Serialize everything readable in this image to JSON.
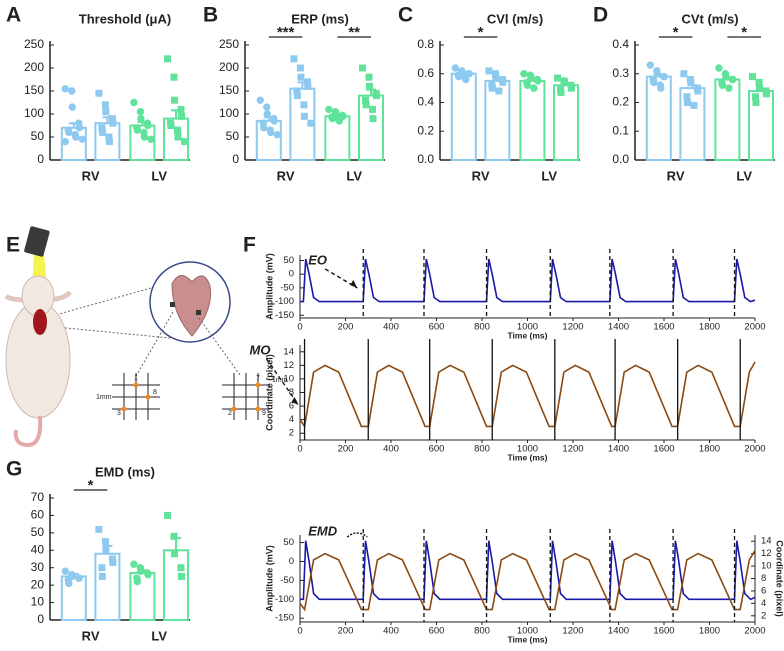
{
  "panel_labels": [
    "A",
    "B",
    "C",
    "D",
    "E",
    "F",
    "G"
  ],
  "illustration": {
    "labels": [
      "1",
      "3",
      "8",
      "1mm",
      "7",
      "2",
      "9",
      "1mm"
    ]
  },
  "chart_data": [
    {
      "type": "bar",
      "title": "Threshold (μA)",
      "categories": [
        "RV",
        "LV"
      ],
      "colors": [
        "#8ec9ef",
        "#5fe39a"
      ],
      "ylim": [
        0,
        250
      ],
      "yticks": [
        0,
        50,
        100,
        150,
        200,
        250
      ],
      "series": [
        {
          "marker": "circle",
          "values": [
            70,
            75
          ],
          "errors": [
            10,
            8
          ],
          "points": [
            [
              155,
              150,
              115,
              80,
              70,
              65,
              60,
              55,
              50,
              45,
              40
            ],
            [
              125,
              105,
              90,
              80,
              75,
              70,
              65,
              60,
              50,
              45
            ]
          ]
        },
        {
          "marker": "square",
          "values": [
            80,
            90
          ],
          "errors": [
            13,
            18
          ],
          "points": [
            [
              145,
              120,
              105,
              90,
              80,
              70,
              60,
              50,
              40
            ],
            [
              220,
              180,
              130,
              110,
              95,
              80,
              75,
              65,
              50,
              40
            ]
          ]
        }
      ],
      "annotations": []
    },
    {
      "type": "bar",
      "title": "ERP (ms)",
      "categories": [
        "RV",
        "LV"
      ],
      "colors": [
        "#8ec9ef",
        "#5fe39a"
      ],
      "ylim": [
        0,
        250
      ],
      "yticks": [
        0,
        50,
        100,
        150,
        200,
        250
      ],
      "series": [
        {
          "marker": "circle",
          "values": [
            85,
            95
          ],
          "errors": [
            8,
            3
          ],
          "points": [
            [
              130,
              115,
              100,
              90,
              85,
              80,
              70,
              65,
              60,
              55
            ],
            [
              110,
              105,
              100,
              97,
              95,
              93,
              90,
              88,
              85
            ]
          ]
        },
        {
          "marker": "square",
          "values": [
            155,
            140
          ],
          "errors": [
            14,
            13
          ],
          "points": [
            [
              220,
              200,
              180,
              170,
              160,
              150,
              140,
              120,
              95,
              80
            ],
            [
              200,
              180,
              160,
              145,
              140,
              130,
              120,
              110,
              90
            ]
          ]
        }
      ],
      "annotations": [
        {
          "text": "***",
          "category": 0
        },
        {
          "text": "**",
          "category": 1
        }
      ]
    },
    {
      "type": "bar",
      "title": "CVl (m/s)",
      "categories": [
        "RV",
        "LV"
      ],
      "colors": [
        "#8ec9ef",
        "#5fe39a"
      ],
      "ylim": [
        0,
        0.8
      ],
      "yticks": [
        {
          "value": 0,
          "label": "0.0"
        },
        0.2,
        0.4,
        0.6,
        0.8
      ],
      "series": [
        {
          "marker": "circle",
          "values": [
            0.6,
            0.55
          ],
          "errors": [
            0.01,
            0.012
          ],
          "points": [
            [
              0.64,
              0.62,
              0.61,
              0.6,
              0.6,
              0.59,
              0.58,
              0.57,
              0.56
            ],
            [
              0.6,
              0.59,
              0.58,
              0.56,
              0.55,
              0.54,
              0.52,
              0.5
            ]
          ]
        },
        {
          "marker": "square",
          "values": [
            0.55,
            0.52
          ],
          "errors": [
            0.015,
            0.01
          ],
          "points": [
            [
              0.62,
              0.6,
              0.58,
              0.56,
              0.54,
              0.52,
              0.5,
              0.48
            ],
            [
              0.57,
              0.55,
              0.54,
              0.52,
              0.5,
              0.49,
              0.47
            ]
          ]
        }
      ],
      "annotations": [
        {
          "text": "*",
          "category": 0
        }
      ]
    },
    {
      "type": "bar",
      "title": "CVt (m/s)",
      "categories": [
        "RV",
        "LV"
      ],
      "colors": [
        "#8ec9ef",
        "#5fe39a"
      ],
      "ylim": [
        0,
        0.4
      ],
      "yticks": [
        {
          "value": 0,
          "label": "0.0"
        },
        0.1,
        0.2,
        0.3,
        0.4
      ],
      "series": [
        {
          "marker": "circle",
          "values": [
            0.29,
            0.28
          ],
          "errors": [
            0.006,
            0.007
          ],
          "points": [
            [
              0.33,
              0.31,
              0.3,
              0.29,
              0.29,
              0.28,
              0.27,
              0.26,
              0.25
            ],
            [
              0.32,
              0.3,
              0.29,
              0.28,
              0.28,
              0.27,
              0.26,
              0.25
            ]
          ]
        },
        {
          "marker": "square",
          "values": [
            0.25,
            0.24
          ],
          "errors": [
            0.01,
            0.008
          ],
          "points": [
            [
              0.3,
              0.28,
              0.27,
              0.25,
              0.24,
              0.22,
              0.2,
              0.19
            ],
            [
              0.29,
              0.27,
              0.25,
              0.24,
              0.23,
              0.22,
              0.2
            ]
          ]
        }
      ],
      "annotations": [
        {
          "text": "*",
          "category": 0
        },
        {
          "text": "*",
          "category": 1
        }
      ]
    },
    {
      "type": "bar",
      "title": "EMD (ms)",
      "categories": [
        "RV",
        "LV"
      ],
      "colors": [
        "#8ec9ef",
        "#5fe39a"
      ],
      "ylim": [
        0,
        70
      ],
      "yticks": [
        0,
        10,
        20,
        30,
        40,
        50,
        60,
        70
      ],
      "series": [
        {
          "marker": "circle",
          "values": [
            25,
            27
          ],
          "errors": [
            1.5,
            1.5
          ],
          "points": [
            [
              28,
              26,
              25,
              24,
              24,
              23,
              21
            ],
            [
              32,
              30,
              28,
              27,
              26,
              24,
              22
            ]
          ]
        },
        {
          "marker": "square",
          "values": [
            38,
            40
          ],
          "errors": [
            4.5,
            7
          ],
          "points": [
            [
              52,
              45,
              40,
              35,
              33,
              30,
              25
            ],
            [
              60,
              48,
              38,
              30,
              25
            ]
          ]
        }
      ],
      "annotations": [
        {
          "text": "*",
          "category": 0
        }
      ]
    },
    {
      "type": "line",
      "ylabel": "Amplitude (mV)",
      "xlabel": "Time (ms)",
      "annotation": "EO",
      "xlim": [
        0,
        2000
      ],
      "xticks": [
        0,
        200,
        400,
        600,
        800,
        1000,
        1200,
        1400,
        1600,
        1800,
        2000
      ],
      "ylim": [
        -160,
        70
      ],
      "yticks": [
        -150,
        -100,
        -50,
        0,
        50
      ],
      "events": {
        "style": "dashed",
        "values": [
          278,
          545,
          820,
          1100,
          1362,
          1640,
          1910
        ]
      },
      "series": [
        {
          "color": "#1a1aa6",
          "axis": "y",
          "x": [
            0,
            15,
            25,
            40,
            60,
            85,
            278,
            288,
            303,
            323,
            348,
            545,
            555,
            570,
            590,
            615,
            820,
            830,
            845,
            865,
            890,
            1100,
            1110,
            1125,
            1145,
            1170,
            1362,
            1372,
            1387,
            1407,
            1432,
            1640,
            1650,
            1665,
            1685,
            1710,
            1910,
            1920,
            1935,
            1955,
            1980,
            2000
          ],
          "values": [
            -100,
            -100,
            55,
            0,
            -85,
            -100,
            -100,
            55,
            0,
            -85,
            -100,
            -100,
            55,
            0,
            -85,
            -100,
            -100,
            55,
            0,
            -85,
            -100,
            -100,
            55,
            0,
            -85,
            -100,
            -100,
            55,
            0,
            -85,
            -100,
            -100,
            55,
            0,
            -85,
            -100,
            -100,
            55,
            0,
            -85,
            -100,
            -95
          ]
        }
      ]
    },
    {
      "type": "line",
      "ylabel": "Coordinate (pixel)",
      "xlabel": "Time (ms)",
      "annotation": "MO",
      "xlim": [
        0,
        2000
      ],
      "xticks": [
        0,
        200,
        400,
        600,
        800,
        1000,
        1200,
        1400,
        1600,
        1800,
        2000
      ],
      "ylim": [
        1,
        15
      ],
      "yticks": [
        2,
        4,
        6,
        8,
        10,
        12,
        14
      ],
      "events": {
        "style": "solid",
        "values": [
          20,
          300,
          570,
          845,
          1120,
          1385,
          1660,
          1935
        ]
      },
      "series": [
        {
          "color": "#8b4a12",
          "axis": "y",
          "x": [
            0,
            20,
            60,
            110,
            170,
            220,
            270,
            300,
            340,
            390,
            450,
            500,
            550,
            570,
            610,
            660,
            720,
            770,
            820,
            845,
            885,
            935,
            995,
            1045,
            1095,
            1120,
            1160,
            1210,
            1270,
            1320,
            1370,
            1385,
            1425,
            1475,
            1535,
            1585,
            1635,
            1660,
            1700,
            1750,
            1810,
            1860,
            1910,
            1935,
            1975,
            2000
          ],
          "values": [
            4,
            3,
            11,
            12,
            11,
            7,
            3,
            3,
            11,
            12,
            11,
            7,
            3,
            3,
            11,
            12,
            11,
            7,
            3,
            3,
            11,
            12,
            11,
            7,
            3,
            3,
            11,
            12,
            11,
            7,
            3,
            3,
            11,
            12,
            11,
            7,
            3,
            3,
            11,
            12,
            11,
            7,
            3,
            3,
            11,
            12.5
          ]
        }
      ]
    },
    {
      "type": "line",
      "ylabel": "Amplitude (mV)",
      "y2label": "Coordinate (pixel)",
      "xlabel": "Time (ms)",
      "annotation": "EMD",
      "xlim": [
        0,
        2000
      ],
      "xticks": [
        0,
        200,
        400,
        600,
        800,
        1000,
        1200,
        1400,
        1600,
        1800,
        2000
      ],
      "ylim": [
        -160,
        70
      ],
      "yticks": [
        -150,
        -100,
        -50,
        0,
        50
      ],
      "y2lim": [
        1,
        15
      ],
      "y2ticks": [
        2,
        4,
        6,
        8,
        10,
        12,
        14
      ],
      "events": {
        "style": "dashed",
        "values": [
          278,
          545,
          820,
          1100,
          1362,
          1640,
          1910
        ]
      },
      "series": [
        {
          "color": "#1a1aa6",
          "axis": "y",
          "x": [
            0,
            15,
            25,
            40,
            60,
            85,
            278,
            288,
            303,
            323,
            348,
            545,
            555,
            570,
            590,
            615,
            820,
            830,
            845,
            865,
            890,
            1100,
            1110,
            1125,
            1145,
            1170,
            1362,
            1372,
            1387,
            1407,
            1432,
            1640,
            1650,
            1665,
            1685,
            1710,
            1910,
            1920,
            1935,
            1955,
            1980,
            2000
          ],
          "values": [
            -100,
            -100,
            55,
            0,
            -85,
            -100,
            -100,
            55,
            0,
            -85,
            -100,
            -100,
            55,
            0,
            -85,
            -100,
            -100,
            55,
            0,
            -85,
            -100,
            -100,
            55,
            0,
            -85,
            -100,
            -100,
            55,
            0,
            -85,
            -100,
            -100,
            55,
            0,
            -85,
            -100,
            -100,
            55,
            0,
            -85,
            -100,
            -95
          ]
        },
        {
          "color": "#8b4a12",
          "axis": "y2",
          "x": [
            0,
            20,
            60,
            110,
            170,
            220,
            270,
            300,
            340,
            390,
            450,
            500,
            550,
            570,
            610,
            660,
            720,
            770,
            820,
            845,
            885,
            935,
            995,
            1045,
            1095,
            1120,
            1160,
            1210,
            1270,
            1320,
            1370,
            1385,
            1425,
            1475,
            1535,
            1585,
            1635,
            1660,
            1700,
            1750,
            1810,
            1860,
            1910,
            1935,
            1975,
            2000
          ],
          "values": [
            4,
            3,
            11,
            12,
            11,
            7,
            3,
            3,
            11,
            12,
            11,
            7,
            3,
            3,
            11,
            12,
            11,
            7,
            3,
            3,
            11,
            12,
            11,
            7,
            3,
            3,
            11,
            12,
            11,
            7,
            3,
            3,
            11,
            12,
            11,
            7,
            3,
            3,
            11,
            12,
            11,
            7,
            3,
            3,
            11,
            12.5
          ]
        }
      ]
    }
  ]
}
